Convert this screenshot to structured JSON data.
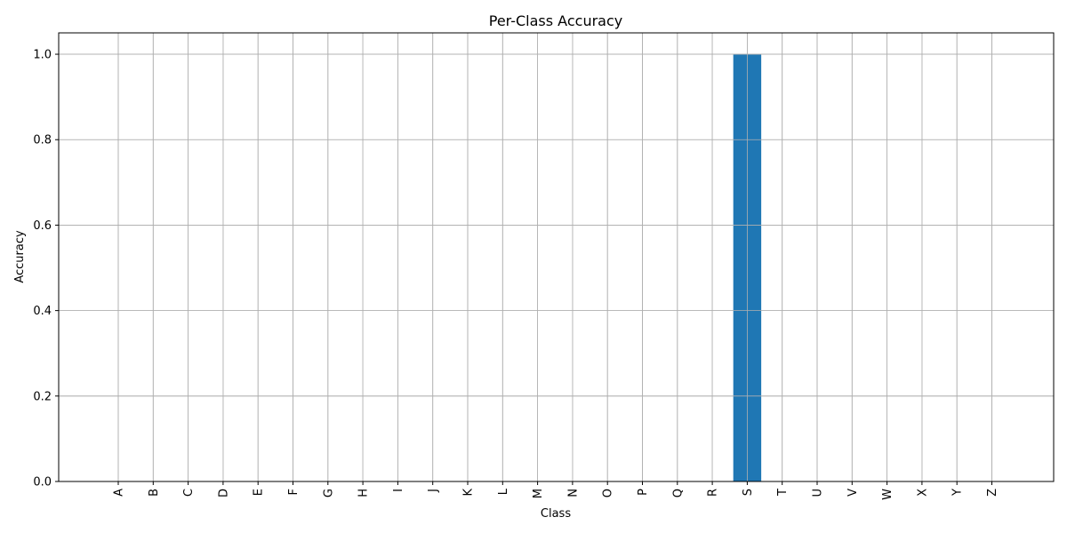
{
  "chart_data": {
    "type": "bar",
    "title": "Per-Class Accuracy",
    "xlabel": "Class",
    "ylabel": "Accuracy",
    "categories": [
      "A",
      "B",
      "C",
      "D",
      "E",
      "F",
      "G",
      "H",
      "I",
      "J",
      "K",
      "L",
      "M",
      "N",
      "O",
      "P",
      "Q",
      "R",
      "S",
      "T",
      "U",
      "V",
      "W",
      "X",
      "Y",
      "Z"
    ],
    "values": [
      0,
      0,
      0,
      0,
      0,
      0,
      0,
      0,
      0,
      0,
      0,
      0,
      0,
      0,
      0,
      0,
      0,
      0,
      1.0,
      0,
      0,
      0,
      0,
      0,
      0,
      0
    ],
    "ylim": [
      0,
      1.05
    ],
    "yticks": [
      0.0,
      0.2,
      0.4,
      0.6,
      0.8,
      1.0
    ],
    "ytick_labels": [
      "0.0",
      "0.2",
      "0.4",
      "0.6",
      "0.8",
      "1.0"
    ],
    "grid": true,
    "bar_color": "#1f77b4",
    "grid_color": "#b0b0b0"
  }
}
